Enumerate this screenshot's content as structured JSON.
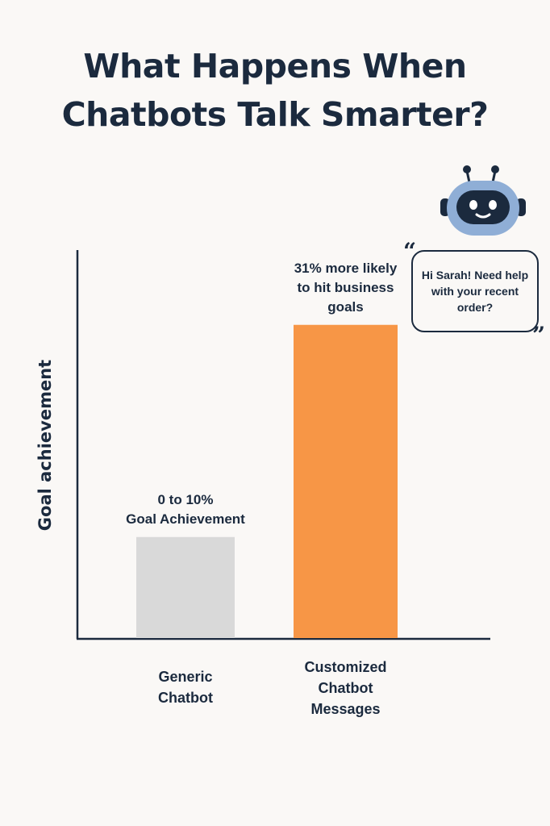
{
  "colors": {
    "background": "#faf8f6",
    "text": "#1b2a3e",
    "bar_generic": "#d9d9d9",
    "bar_custom": "#f79646",
    "robot_head": "#8faed6",
    "robot_face": "#1b2a3e"
  },
  "icons": {
    "robot": "robot-icon"
  },
  "bubble": {
    "text": "Hi Sarah! Need help with your recent order?",
    "quote_open": "“",
    "quote_close": "”"
  },
  "chart_data": {
    "type": "bar",
    "title": "What Happens When Chatbots Talk Smarter?",
    "title_lines": [
      "What Happens When",
      "Chatbots Talk Smarter?"
    ],
    "ylabel": "Goal achievement",
    "xlabel": "",
    "categories": [
      "Generic\nChatbot",
      "Customized\nChatbot\nMessages"
    ],
    "values": [
      10,
      31
    ],
    "data_labels": [
      "0 to 10%\nGoal Achievement",
      "31% more likely\nto hit business\ngoals"
    ],
    "ylim": [
      0,
      40
    ],
    "grid": false,
    "legend": "none"
  }
}
